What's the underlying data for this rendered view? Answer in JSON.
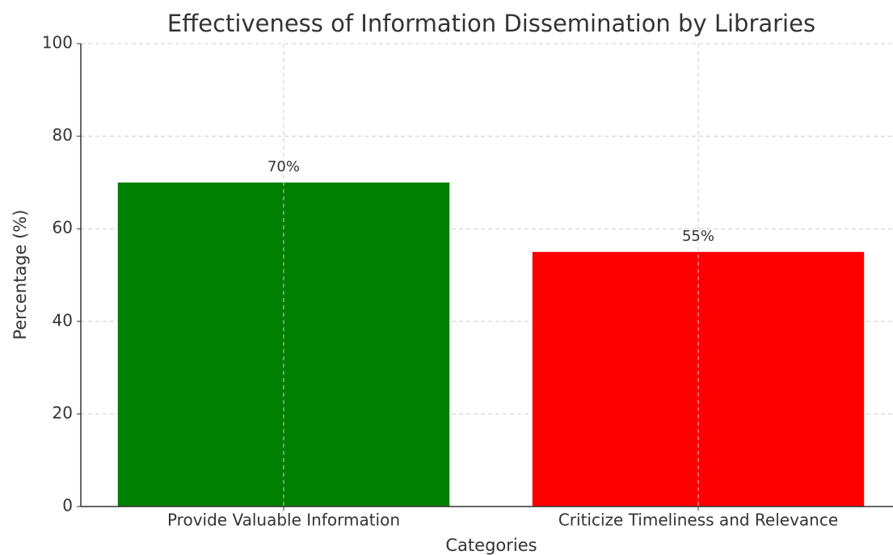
{
  "chart_data": {
    "type": "bar",
    "title": "Effectiveness of Information Dissemination by Libraries",
    "x_label": "Categories",
    "y_label": "Percentage (%)",
    "categories": [
      "Provide Valuable Information",
      "Criticize Timeliness and Relevance"
    ],
    "values": [
      70,
      55
    ],
    "value_labels": [
      "70%",
      "55%"
    ],
    "colors": [
      "#008000",
      "#ff0000"
    ],
    "ylim": [
      0,
      100
    ],
    "yticks": [
      0,
      20,
      40,
      60,
      80,
      100
    ],
    "grid": true
  }
}
